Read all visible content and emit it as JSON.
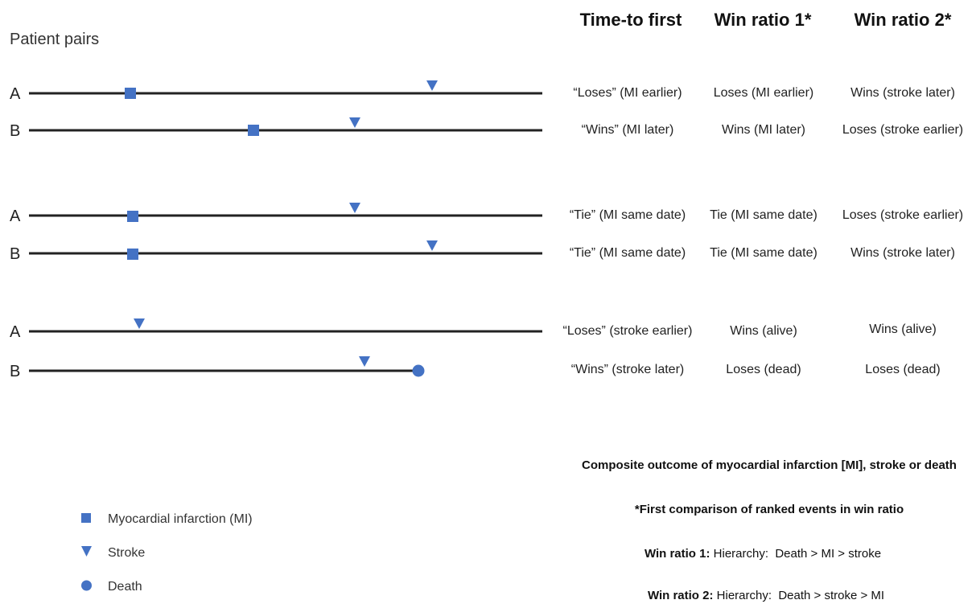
{
  "side_title": "Patient pairs",
  "columns": [
    "Time-to first",
    "Win ratio 1*",
    "Win ratio 2*"
  ],
  "pairs": [
    {
      "rows": [
        {
          "label": "A",
          "events": [
            {
              "type": "mi"
            },
            {
              "type": "stroke"
            }
          ],
          "cells": [
            "“Loses”  (MI earlier)",
            "Loses (MI earlier)",
            "Wins (stroke later)"
          ]
        },
        {
          "label": "B",
          "events": [
            {
              "type": "mi"
            },
            {
              "type": "stroke"
            }
          ],
          "cells": [
            "“Wins” (MI later)",
            "Wins (MI later)",
            "Loses (stroke earlier)"
          ]
        }
      ]
    },
    {
      "rows": [
        {
          "label": "A",
          "events": [
            {
              "type": "mi"
            },
            {
              "type": "stroke"
            }
          ],
          "cells": [
            "“Tie” (MI same date)",
            "Tie (MI same date)",
            "Loses (stroke earlier)"
          ]
        },
        {
          "label": "B",
          "events": [
            {
              "type": "mi"
            },
            {
              "type": "stroke"
            }
          ],
          "cells": [
            "“Tie” (MI same date)",
            "Tie (MI same date)",
            "Wins (stroke later)"
          ]
        }
      ]
    },
    {
      "rows": [
        {
          "label": "A",
          "events": [
            {
              "type": "stroke"
            }
          ],
          "cells": [
            "“Loses” (stroke earlier)",
            "Wins (alive)",
            "Wins (alive)"
          ]
        },
        {
          "label": "B",
          "events": [
            {
              "type": "stroke"
            },
            {
              "type": "death"
            }
          ],
          "cells": [
            "“Wins” (stroke later)",
            "Loses (dead)",
            "Loses (dead)"
          ]
        }
      ]
    }
  ],
  "notes": {
    "composite": "Composite outcome of myocardial infarction [MI], stroke or death",
    "first_comparison": "*First comparison of ranked events in win ratio",
    "wr1_label": "Win ratio 1:",
    "wr1_text": " Hierarchy:  Death > MI > stroke",
    "wr2_label": "Win ratio 2:",
    "wr2_text": " Hierarchy:  Death > stroke > MI"
  },
  "legend": [
    {
      "type": "mi",
      "label": "Myocardial infarction (MI)",
      "icon": "square-icon"
    },
    {
      "type": "stroke",
      "label": "Stroke",
      "icon": "triangle-down-icon"
    },
    {
      "type": "death",
      "label": "Death",
      "icon": "circle-icon"
    }
  ],
  "colors": {
    "marker": "#4472C4",
    "line": "#222222"
  }
}
